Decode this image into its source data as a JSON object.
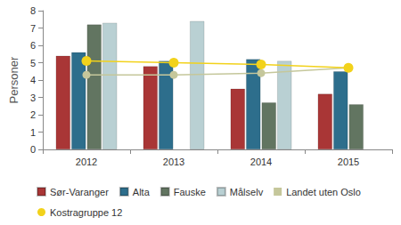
{
  "chart_data": {
    "type": "bar",
    "y_label": "Personer",
    "categories": [
      "2012",
      "2013",
      "2014",
      "2015"
    ],
    "series": [
      {
        "name": "Sør-Varanger",
        "type": "bar",
        "color": "#a93636",
        "values": [
          5.4,
          4.8,
          3.5,
          3.2
        ]
      },
      {
        "name": "Alta",
        "type": "bar",
        "color": "#2d6e8c",
        "values": [
          5.6,
          5.1,
          5.2,
          4.5
        ]
      },
      {
        "name": "Fauske",
        "type": "bar",
        "color": "#627561",
        "values": [
          7.2,
          null,
          2.7,
          2.6
        ]
      },
      {
        "name": "Målselv",
        "type": "bar",
        "color": "#b9d0d3",
        "values": [
          7.3,
          7.4,
          5.1,
          null
        ]
      },
      {
        "name": "Landet uten Oslo",
        "type": "line",
        "color": "#c5c79b",
        "marker": "circle",
        "values": [
          4.3,
          4.3,
          4.4,
          4.7
        ]
      },
      {
        "name": "Kostragruppe 12",
        "type": "line",
        "color": "#f2d21b",
        "marker": "circle",
        "values": [
          5.1,
          5.0,
          4.9,
          4.7
        ]
      }
    ],
    "ylim": [
      0,
      8
    ],
    "yticks": [
      0,
      1,
      2,
      3,
      4,
      5,
      6,
      7,
      8
    ],
    "grid": false,
    "legend": "bottom"
  }
}
